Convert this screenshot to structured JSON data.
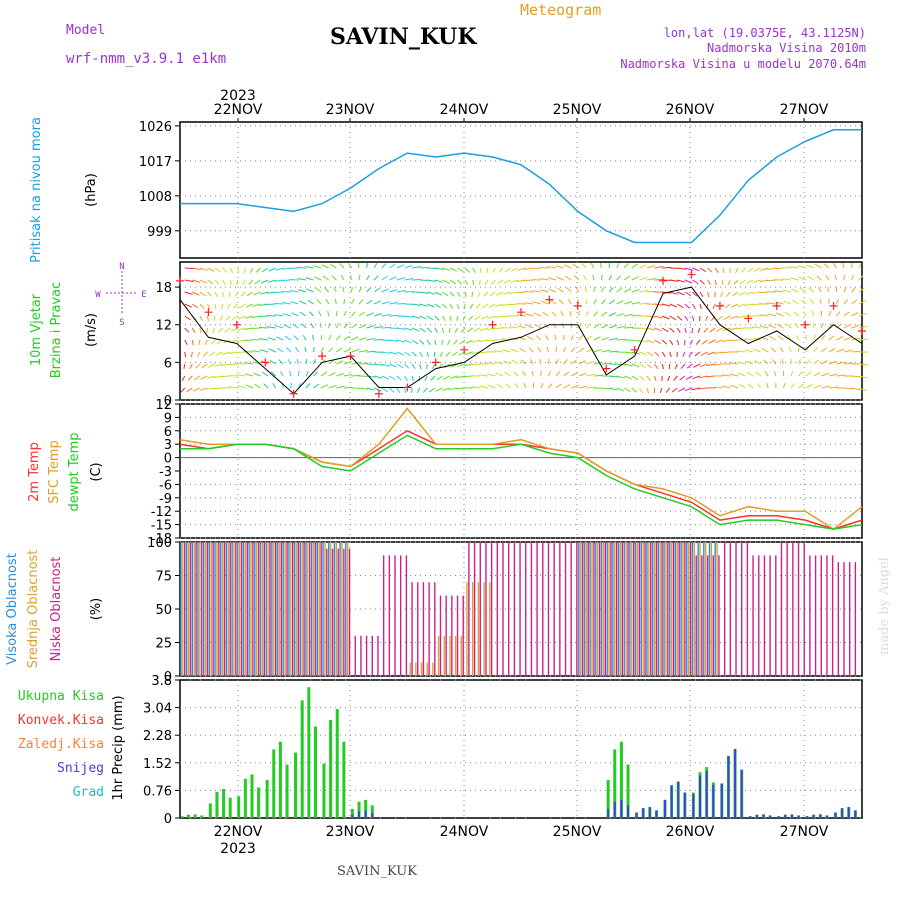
{
  "header": {
    "model_label": "Model",
    "model_name": "wrf-nmm_v3.9.1 e1km",
    "station": "SAVIN_KUK",
    "product": "Meteogram",
    "lonlat": "lon,lat (19.0375E, 43.1125N)",
    "elevation": "Nadmorska Visina 2010m",
    "model_elevation": "Nadmorska Visina u modelu 2070.64m",
    "year_top": "2023",
    "year_bottom": "2023",
    "footer_station": "SAVIN_KUK",
    "credit": "made by Angel"
  },
  "colors": {
    "pressure": "#1a9fe0",
    "wind_speed": "#000000",
    "wind_gust_marker": "#ff2020",
    "temp_2m": "#ff3030",
    "temp_sfc": "#e0a020",
    "dewpoint": "#22cc22",
    "cloud_high": "#2a8fd8",
    "cloud_mid": "#e0a030",
    "cloud_low": "#cc2288",
    "precip_total": "#22cc22",
    "precip_conv": "#ff3030",
    "precip_frz": "#ff8030",
    "precip_snow": "#4040dd",
    "precip_grad": "#20c0c0",
    "label_purple": "#9933cc",
    "label_orange": "#e0a020"
  },
  "chart_data": [
    {
      "type": "line",
      "panel": "pressure",
      "ylabel_side": "Pritisak na nivou mora",
      "unit": "(hPa)",
      "ylim": [
        992,
        1027
      ],
      "yticks": [
        999,
        1008,
        1017,
        1026
      ],
      "x_days": [
        "22NOV",
        "23NOV",
        "24NOV",
        "25NOV",
        "26NOV",
        "27NOV"
      ],
      "x": [
        0,
        6,
        12,
        18,
        24,
        30,
        36,
        42,
        48,
        54,
        60,
        66,
        72,
        78,
        84,
        90,
        96,
        102,
        108,
        114,
        120,
        126,
        132,
        138,
        144
      ],
      "series": [
        {
          "values": [
            1006,
            1006,
            1006,
            1005,
            1004,
            1006,
            1010,
            1015,
            1019,
            1018,
            1019,
            1018,
            1016,
            1011,
            1004,
            999,
            996,
            996,
            996,
            1003,
            1012,
            1018,
            1022,
            1025,
            1025
          ]
        }
      ]
    },
    {
      "type": "line",
      "panel": "wind",
      "ylabel_side": "10m Vjetar Brzina i Pravac",
      "unit": "(m/s)",
      "compass": "N E S W",
      "ylim": [
        0,
        22
      ],
      "yticks": [
        0,
        6,
        12,
        18
      ],
      "x": [
        0,
        6,
        12,
        18,
        24,
        30,
        36,
        42,
        48,
        54,
        60,
        66,
        72,
        78,
        84,
        90,
        96,
        102,
        108,
        114,
        120,
        126,
        132,
        138,
        144
      ],
      "series": [
        {
          "values": [
            16,
            10,
            9,
            5,
            1,
            6,
            7,
            2,
            2,
            5,
            6,
            9,
            10,
            12,
            12,
            4,
            7,
            17,
            18,
            12,
            9,
            11,
            8,
            12,
            9
          ]
        },
        {
          "values": [
            19,
            14,
            12,
            6,
            1,
            7,
            7,
            1,
            2,
            6,
            8,
            12,
            14,
            16,
            15,
            5,
            8,
            19,
            20,
            15,
            13,
            15,
            12,
            15,
            11
          ]
        }
      ]
    },
    {
      "type": "line",
      "panel": "temperature",
      "ylabel_side": "2m Temp SFC Temp dewpt Temp",
      "unit": "(C)",
      "ylim": [
        -18,
        12
      ],
      "yticks": [
        12,
        9,
        6,
        3,
        0,
        -3,
        -6,
        -9,
        -12,
        -15,
        -18
      ],
      "x": [
        0,
        6,
        12,
        18,
        24,
        30,
        36,
        42,
        48,
        54,
        60,
        66,
        72,
        78,
        84,
        90,
        96,
        102,
        108,
        114,
        120,
        126,
        132,
        138,
        144
      ],
      "series": [
        {
          "name": "2m Temp",
          "values": [
            3,
            2,
            3,
            3,
            2,
            -1,
            -2,
            2,
            6,
            3,
            3,
            3,
            3,
            2,
            1,
            -3,
            -6,
            -8,
            -10,
            -14,
            -13,
            -13,
            -14,
            -16,
            -14
          ]
        },
        {
          "name": "SFC Temp",
          "values": [
            4,
            3,
            3,
            3,
            2,
            -1,
            -2,
            3,
            11,
            3,
            3,
            3,
            4,
            2,
            1,
            -3,
            -6,
            -7,
            -9,
            -13,
            -11,
            -12,
            -12,
            -16,
            -11
          ]
        },
        {
          "name": "dewpt Temp",
          "values": [
            2,
            2,
            3,
            3,
            2,
            -2,
            -3,
            1,
            5,
            2,
            2,
            2,
            3,
            1,
            0,
            -4,
            -7,
            -9,
            -11,
            -15,
            -14,
            -14,
            -15,
            -16,
            -15
          ]
        }
      ]
    },
    {
      "type": "bar",
      "panel": "clouds",
      "ylabel_side": "Visoka Oblacnost Srednja Oblacnost Niska Oblacnost",
      "unit": "(%)",
      "ylim": [
        0,
        100
      ],
      "yticks": [
        0,
        25,
        50,
        75,
        100
      ],
      "series": [
        {
          "name": "Visoka Oblacnost",
          "values": [
            100,
            100,
            100,
            100,
            100,
            100,
            0,
            0,
            0,
            0,
            0,
            0,
            0,
            0,
            100,
            100,
            100,
            100,
            100,
            0,
            0,
            0,
            0,
            0,
            0
          ]
        },
        {
          "name": "Srednja Oblacnost",
          "values": [
            100,
            100,
            100,
            100,
            100,
            100,
            0,
            0,
            10,
            30,
            70,
            0,
            0,
            0,
            100,
            100,
            100,
            100,
            100,
            0,
            0,
            0,
            0,
            0,
            0
          ]
        },
        {
          "name": "Niska Oblacnost",
          "values": [
            100,
            100,
            100,
            100,
            100,
            95,
            30,
            90,
            70,
            60,
            100,
            100,
            100,
            100,
            100,
            100,
            100,
            100,
            90,
            100,
            90,
            100,
            90,
            85,
            80
          ]
        }
      ]
    },
    {
      "type": "bar",
      "panel": "precip",
      "ylabel_side": "1hr Precip (mm)",
      "ylim": [
        0,
        3.8
      ],
      "yticks": [
        0,
        0.76,
        1.52,
        2.28,
        3.04,
        3.8
      ],
      "legend": [
        "Ukupna Kisa",
        "Konvek.Kisa",
        "Zaledj.Kisa",
        "Snijeg",
        "Grad"
      ],
      "series": [
        {
          "name": "Ukupna Kisa",
          "values": [
            0.1,
            0.8,
            1.2,
            2.1,
            3.6,
            3.0,
            0.5,
            0,
            0,
            0,
            0,
            0,
            0,
            0,
            0,
            2.1,
            0.3,
            1.0,
            1.4,
            1.9,
            0.1,
            0.1,
            0.1,
            0.3,
            0.1
          ]
        },
        {
          "name": "Snijeg",
          "values": [
            0,
            0,
            0,
            0,
            0,
            0,
            0.2,
            0,
            0,
            0,
            0,
            0,
            0,
            0,
            0,
            0.5,
            0.3,
            1.0,
            1.3,
            1.9,
            0.1,
            0.1,
            0.1,
            0.3,
            0.1
          ]
        }
      ]
    }
  ]
}
